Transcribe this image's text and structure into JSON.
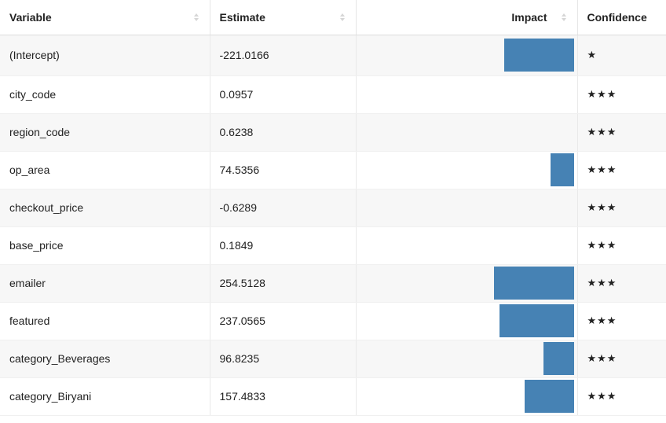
{
  "columns": {
    "variable": "Variable",
    "estimate": "Estimate",
    "impact": "Impact",
    "confidence": "Confidence"
  },
  "bar_color": "#4682b4",
  "impact_max": 254.5128,
  "rows": [
    {
      "variable": "(Intercept)",
      "estimate": "-221.0166",
      "impact": 221.0166,
      "confidence": "★"
    },
    {
      "variable": "city_code",
      "estimate": "0.0957",
      "impact": 0.0957,
      "confidence": "★★★"
    },
    {
      "variable": "region_code",
      "estimate": "0.6238",
      "impact": 0.6238,
      "confidence": "★★★"
    },
    {
      "variable": "op_area",
      "estimate": "74.5356",
      "impact": 74.5356,
      "confidence": "★★★"
    },
    {
      "variable": "checkout_price",
      "estimate": "-0.6289",
      "impact": 0.6289,
      "confidence": "★★★"
    },
    {
      "variable": "base_price",
      "estimate": "0.1849",
      "impact": 0.1849,
      "confidence": "★★★"
    },
    {
      "variable": "emailer",
      "estimate": "254.5128",
      "impact": 254.5128,
      "confidence": "★★★"
    },
    {
      "variable": "featured",
      "estimate": "237.0565",
      "impact": 237.0565,
      "confidence": "★★★"
    },
    {
      "variable": "category_Beverages",
      "estimate": "96.8235",
      "impact": 96.8235,
      "confidence": "★★★"
    },
    {
      "variable": "category_Biryani",
      "estimate": "157.4833",
      "impact": 157.4833,
      "confidence": "★★★"
    }
  ]
}
